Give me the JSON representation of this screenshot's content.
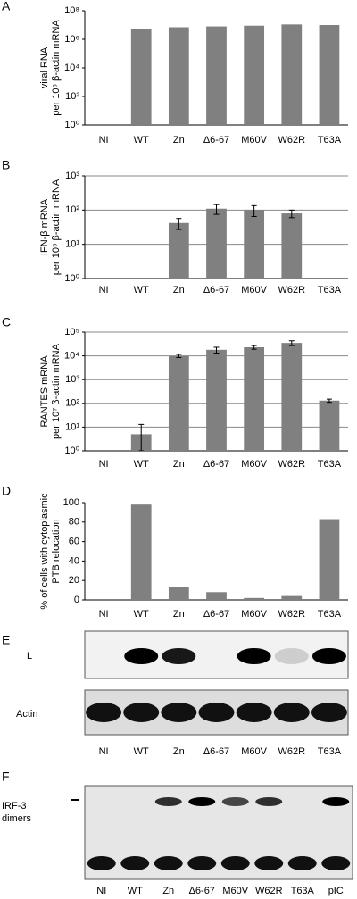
{
  "chart_data": [
    {
      "type": "bar",
      "panel": "A",
      "log_y": true,
      "grid": false,
      "color": "#808080",
      "ylabel": [
        "viral RNA",
        "per 10⁵ β-actin mRNA"
      ],
      "categories": [
        "NI",
        "WT",
        "Zn",
        "Δ6-67",
        "M60V",
        "W62R",
        "T63A"
      ],
      "values": [
        null,
        5000000,
        7000000,
        8000000,
        9000000,
        11000000,
        10000000
      ],
      "ylim": [
        1,
        100000000
      ],
      "yticks": [
        {
          "value": 1,
          "label": "10⁰"
        },
        {
          "value": 100,
          "label": "10²"
        },
        {
          "value": 10000,
          "label": "10⁴"
        },
        {
          "value": 1000000,
          "label": "10⁶"
        },
        {
          "value": 100000000,
          "label": "10⁸"
        }
      ]
    },
    {
      "type": "bar",
      "panel": "B",
      "log_y": true,
      "grid": true,
      "color": "#808080",
      "ylabel": [
        "IFN-β mRNA",
        "per 10⁵ β-actin mRNA"
      ],
      "categories": [
        "NI",
        "WT",
        "Zn",
        "Δ6-67",
        "M60V",
        "W62R",
        "T63A"
      ],
      "values": [
        null,
        null,
        42,
        110,
        100,
        80,
        null
      ],
      "errors": [
        null,
        null,
        15,
        35,
        35,
        20,
        null
      ],
      "ylim": [
        1,
        1000
      ],
      "yticks": [
        {
          "value": 1,
          "label": "10⁰"
        },
        {
          "value": 10,
          "label": "10¹"
        },
        {
          "value": 100,
          "label": "10²"
        },
        {
          "value": 1000,
          "label": "10³"
        }
      ]
    },
    {
      "type": "bar",
      "panel": "C",
      "log_y": true,
      "grid": true,
      "color": "#808080",
      "ylabel": [
        "RANTES mRNA",
        "per 10⁷ β-actin mRNA"
      ],
      "categories": [
        "NI",
        "WT",
        "Zn",
        "Δ6-67",
        "M60V",
        "W62R",
        "T63A"
      ],
      "values": [
        null,
        5,
        10000,
        18000,
        23000,
        35000,
        130
      ],
      "errors": [
        null,
        8,
        1500,
        5000,
        4000,
        8000,
        20
      ],
      "ylim": [
        1,
        100000
      ],
      "yticks": [
        {
          "value": 1,
          "label": "10⁰"
        },
        {
          "value": 10,
          "label": "10¹"
        },
        {
          "value": 100,
          "label": "10²"
        },
        {
          "value": 1000,
          "label": "10³"
        },
        {
          "value": 10000,
          "label": "10⁴"
        },
        {
          "value": 100000,
          "label": "10⁵"
        }
      ]
    },
    {
      "type": "bar",
      "panel": "D",
      "log_y": false,
      "grid": false,
      "color": "#808080",
      "ylabel": [
        "% of cells with cytoplasmic",
        "PTB relocation"
      ],
      "categories": [
        "NI",
        "WT",
        "Zn",
        "Δ6-67",
        "M60V",
        "W62R",
        "T63A"
      ],
      "values": [
        0,
        98,
        13,
        8,
        2,
        4,
        83
      ],
      "ylim": [
        0,
        100
      ],
      "yticks": [
        0,
        20,
        40,
        60,
        80,
        100
      ]
    }
  ],
  "blots": [
    {
      "panel": "E",
      "rows": [
        "L",
        "Actin"
      ],
      "lanes": [
        "NI",
        "WT",
        "Zn",
        "Δ6-67",
        "M60V",
        "W62R",
        "T63A"
      ]
    },
    {
      "panel": "F",
      "rows": [
        "IRF-3",
        "dimers"
      ],
      "lanes": [
        "NI",
        "WT",
        "Zn",
        "Δ6-67",
        "M60V",
        "W62R",
        "T63A",
        "pIC"
      ]
    }
  ]
}
